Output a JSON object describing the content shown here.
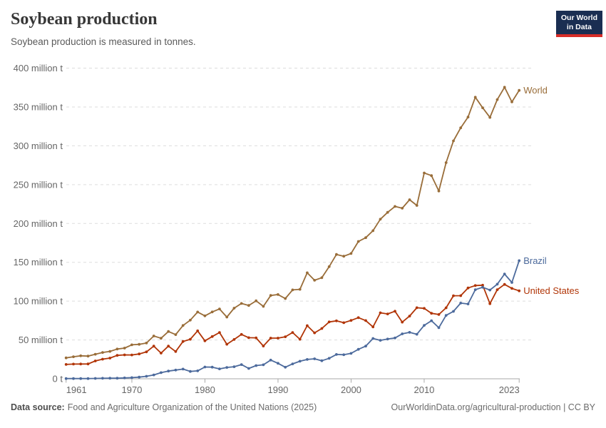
{
  "header": {
    "title": "Soybean production",
    "subtitle": "Soybean production is measured in tonnes."
  },
  "logo": {
    "line1": "Our World",
    "line2": "in Data"
  },
  "footer": {
    "source_label": "Data source:",
    "source_text": "Food and Agriculture Organization of the United Nations (2025)",
    "credit": "OurWorldinData.org/agricultural-production | CC BY"
  },
  "chart_data": {
    "type": "line",
    "title": "Soybean production",
    "unit": "tonnes",
    "xlabel": "",
    "ylabel": "",
    "xlim": [
      1961,
      2023
    ],
    "ylim": [
      0,
      400
    ],
    "grid": true,
    "markers": true,
    "legend_position": "line-end",
    "xticks": [
      1961,
      1970,
      1980,
      1990,
      2000,
      2010,
      2023
    ],
    "yticks": [
      {
        "value": 0,
        "label": "0 t"
      },
      {
        "value": 50,
        "label": "50 million t"
      },
      {
        "value": 100,
        "label": "100 million t"
      },
      {
        "value": 150,
        "label": "150 million t"
      },
      {
        "value": 200,
        "label": "200 million t"
      },
      {
        "value": 250,
        "label": "250 million t"
      },
      {
        "value": 300,
        "label": "300 million t"
      },
      {
        "value": 350,
        "label": "350 million t"
      },
      {
        "value": 400,
        "label": "400 million t"
      }
    ],
    "x": [
      1961,
      1962,
      1963,
      1964,
      1965,
      1966,
      1967,
      1968,
      1969,
      1970,
      1971,
      1972,
      1973,
      1974,
      1975,
      1976,
      1977,
      1978,
      1979,
      1980,
      1981,
      1982,
      1983,
      1984,
      1985,
      1986,
      1987,
      1988,
      1989,
      1990,
      1991,
      1992,
      1993,
      1994,
      1995,
      1996,
      1997,
      1998,
      1999,
      2000,
      2001,
      2002,
      2003,
      2004,
      2005,
      2006,
      2007,
      2008,
      2009,
      2010,
      2011,
      2012,
      2013,
      2014,
      2015,
      2016,
      2017,
      2018,
      2019,
      2020,
      2021,
      2022,
      2023
    ],
    "series": [
      {
        "name": "World",
        "color": "#996D39",
        "values": [
          26.9,
          28.4,
          29.6,
          29.2,
          31.6,
          33.9,
          35.3,
          38.3,
          39.5,
          43.7,
          44.4,
          46.0,
          55.1,
          52.2,
          60.9,
          56.9,
          68.6,
          75.5,
          86.0,
          81.0,
          86.1,
          89.9,
          79.5,
          90.9,
          97.0,
          94.4,
          100.4,
          93.2,
          107.3,
          108.5,
          103.3,
          114.5,
          115.2,
          136.5,
          126.9,
          130.2,
          144.4,
          160.1,
          157.8,
          161.3,
          176.8,
          181.7,
          190.7,
          205.5,
          214.3,
          221.9,
          219.6,
          230.6,
          223.2,
          265.0,
          261.6,
          241.8,
          278.3,
          306.4,
          323.2,
          337.0,
          362.6,
          349.0,
          336.6,
          359.5,
          375.4,
          356.5,
          371.4
        ]
      },
      {
        "name": "United States",
        "color": "#B13507",
        "values": [
          18.5,
          18.9,
          19.0,
          19.1,
          23.0,
          25.3,
          26.6,
          30.1,
          30.8,
          30.7,
          32.0,
          34.6,
          42.1,
          33.1,
          42.1,
          35.1,
          48.0,
          50.9,
          61.7,
          48.9,
          54.4,
          59.6,
          44.5,
          50.6,
          57.1,
          52.9,
          52.7,
          42.2,
          52.4,
          52.4,
          54.1,
          59.6,
          50.9,
          68.4,
          59.2,
          64.8,
          73.2,
          74.6,
          72.2,
          75.1,
          78.7,
          75.0,
          66.8,
          85.0,
          83.5,
          87.0,
          72.9,
          80.7,
          91.5,
          90.7,
          84.3,
          82.8,
          91.4,
          106.9,
          107.0,
          116.9,
          120.1,
          120.5,
          96.7,
          114.7,
          121.5,
          116.4,
          113.3
        ]
      },
      {
        "name": "Brazil",
        "color": "#4C6A9C",
        "values": [
          0.3,
          0.3,
          0.3,
          0.3,
          0.5,
          0.6,
          0.7,
          0.7,
          1.1,
          1.5,
          2.1,
          3.2,
          5.0,
          7.9,
          9.9,
          11.2,
          12.5,
          9.5,
          10.2,
          15.2,
          15.0,
          12.8,
          14.6,
          15.5,
          18.3,
          13.3,
          17.0,
          18.0,
          24.1,
          19.9,
          14.9,
          19.2,
          22.6,
          24.9,
          25.7,
          23.2,
          26.4,
          31.3,
          31.0,
          32.7,
          37.9,
          42.1,
          51.9,
          49.5,
          51.2,
          52.5,
          57.9,
          59.8,
          57.3,
          68.8,
          74.8,
          65.8,
          81.7,
          86.8,
          97.5,
          96.4,
          114.7,
          117.9,
          114.3,
          121.8,
          134.9,
          124.0,
          152.1
        ]
      }
    ]
  },
  "colors": {
    "grid": "#dddddd",
    "axis": "#a9a9a9",
    "tick_text": "#666666",
    "logo_bg": "#1a2e52",
    "logo_bar": "#d72d28"
  }
}
